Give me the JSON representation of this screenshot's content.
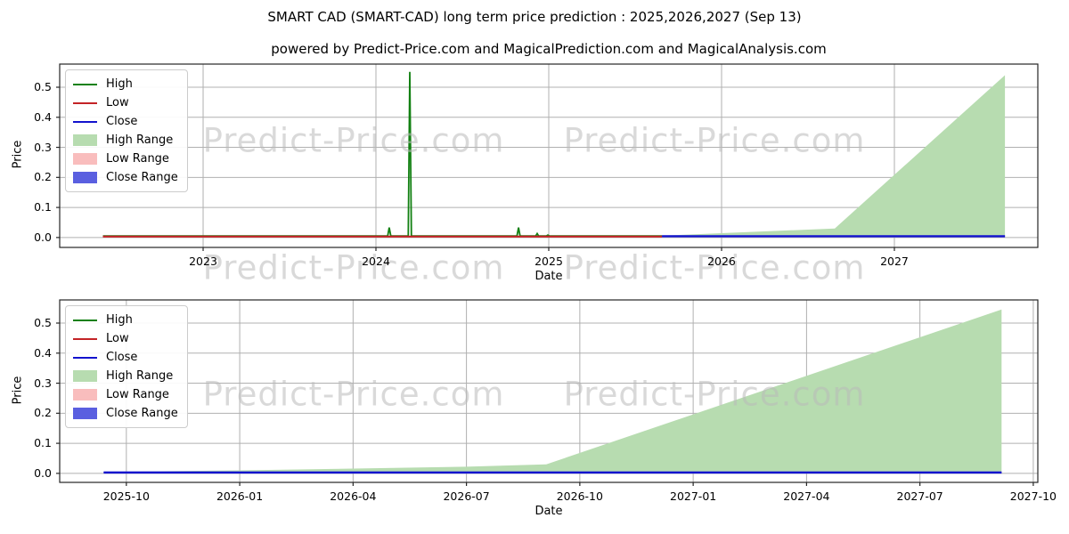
{
  "figure": {
    "title": "SMART CAD (SMART-CAD) long term price prediction : 2025,2026,2027 (Sep 13)",
    "subtitle": "powered by Predict-Price.com and MagicalPrediction.com and MagicalAnalysis.com",
    "watermark_text": "Predict-Price.com",
    "background": "#ffffff"
  },
  "colors": {
    "high": "#128012",
    "low": "#c32326",
    "close": "#1212cd",
    "high_range": "#b7dcb0",
    "low_range": "#f9bdbd",
    "close_range": "#5a5fe0",
    "grid": "#b0b0b0",
    "spine": "#262626",
    "text": "#000000"
  },
  "chart_data": [
    {
      "type": "line",
      "name": "long-term-history-and-prediction-chart",
      "xlabel": "Date",
      "ylabel": "Price",
      "grid": true,
      "legend_position": "upper left",
      "xlim": [
        2022.17,
        2027.83
      ],
      "ylim": [
        -0.033,
        0.577
      ],
      "xticks": [
        {
          "v": 2023,
          "label": "2023"
        },
        {
          "v": 2024,
          "label": "2024"
        },
        {
          "v": 2025,
          "label": "2025"
        },
        {
          "v": 2026,
          "label": "2026"
        },
        {
          "v": 2027,
          "label": "2027"
        }
      ],
      "yticks": [
        {
          "v": 0.0,
          "label": "0.0"
        },
        {
          "v": 0.1,
          "label": "0.1"
        },
        {
          "v": 0.2,
          "label": "0.2"
        },
        {
          "v": 0.3,
          "label": "0.3"
        },
        {
          "v": 0.4,
          "label": "0.4"
        },
        {
          "v": 0.5,
          "label": "0.5"
        }
      ],
      "legend": [
        {
          "label": "High",
          "type": "line",
          "color": "high"
        },
        {
          "label": "Low",
          "type": "line",
          "color": "low"
        },
        {
          "label": "Close",
          "type": "line",
          "color": "close"
        },
        {
          "label": "High Range",
          "type": "patch",
          "color": "high_range"
        },
        {
          "label": "Low Range",
          "type": "patch",
          "color": "low_range"
        },
        {
          "label": "Close Range",
          "type": "patch",
          "color": "close_range"
        }
      ],
      "bands": [
        {
          "name": "High Range",
          "color": "high_range",
          "x": [
            2025.655,
            2026.655,
            2027.64
          ],
          "upper": [
            0.006,
            0.03,
            0.54
          ],
          "lower": [
            0.004,
            0.004,
            0.004
          ]
        },
        {
          "name": "Low Range",
          "color": "low_range",
          "x": [
            2025.655,
            2027.64
          ],
          "upper": [
            0.0045,
            0.0045
          ],
          "lower": [
            0.0015,
            0.0015
          ]
        },
        {
          "name": "Close Range",
          "color": "close_range",
          "x": [
            2025.655,
            2027.64
          ],
          "upper": [
            0.0075,
            0.0075
          ],
          "lower": [
            0.001,
            0.001
          ]
        }
      ],
      "series": [
        {
          "name": "High",
          "color": "high",
          "lw": 1.8,
          "x": [
            2022.42,
            2024.068,
            2024.077,
            2024.086,
            2024.187,
            2024.196,
            2024.205,
            2024.816,
            2024.825,
            2024.834,
            2024.924,
            2024.933,
            2024.942,
            2024.986,
            2024.995,
            2025.004,
            2025.655
          ],
          "y": [
            0.005,
            0.005,
            0.033,
            0.005,
            0.005,
            0.551,
            0.005,
            0.005,
            0.033,
            0.005,
            0.005,
            0.013,
            0.005,
            0.005,
            0.008,
            0.005,
            0.005
          ]
        },
        {
          "name": "Low",
          "color": "low",
          "lw": 2.2,
          "x": [
            2022.42,
            2025.655
          ],
          "y": [
            0.003,
            0.003
          ]
        },
        {
          "name": "Close",
          "color": "close",
          "lw": 2.2,
          "x": [
            2025.655,
            2027.64
          ],
          "y": [
            0.004,
            0.004
          ]
        }
      ]
    },
    {
      "type": "line",
      "name": "prediction-detail-chart",
      "xlabel": "Date",
      "ylabel": "Price",
      "grid": true,
      "legend_position": "upper left",
      "xlim": [
        2025.603,
        2027.76
      ],
      "ylim": [
        -0.03,
        0.577
      ],
      "xticks": [
        {
          "v": 2025.75,
          "label": "2025-10"
        },
        {
          "v": 2026.0,
          "label": "2026-01"
        },
        {
          "v": 2026.25,
          "label": "2026-04"
        },
        {
          "v": 2026.5,
          "label": "2026-07"
        },
        {
          "v": 2026.75,
          "label": "2026-10"
        },
        {
          "v": 2027.0,
          "label": "2027-01"
        },
        {
          "v": 2027.25,
          "label": "2027-04"
        },
        {
          "v": 2027.5,
          "label": "2027-07"
        },
        {
          "v": 2027.75,
          "label": "2027-10"
        }
      ],
      "yticks": [
        {
          "v": 0.0,
          "label": "0.0"
        },
        {
          "v": 0.1,
          "label": "0.1"
        },
        {
          "v": 0.2,
          "label": "0.2"
        },
        {
          "v": 0.3,
          "label": "0.3"
        },
        {
          "v": 0.4,
          "label": "0.4"
        },
        {
          "v": 0.5,
          "label": "0.5"
        }
      ],
      "legend": [
        {
          "label": "High",
          "type": "line",
          "color": "high"
        },
        {
          "label": "Low",
          "type": "line",
          "color": "low"
        },
        {
          "label": "Close",
          "type": "line",
          "color": "close"
        },
        {
          "label": "High Range",
          "type": "patch",
          "color": "high_range"
        },
        {
          "label": "Low Range",
          "type": "patch",
          "color": "low_range"
        },
        {
          "label": "Close Range",
          "type": "patch",
          "color": "close_range"
        }
      ],
      "bands": [
        {
          "name": "High Range",
          "color": "high_range",
          "x": [
            2025.7,
            2026.0,
            2026.25,
            2026.5,
            2026.676,
            2027.68
          ],
          "upper": [
            0.005,
            0.01,
            0.016,
            0.022,
            0.03,
            0.545
          ],
          "lower": [
            0.003,
            0.003,
            0.003,
            0.003,
            0.003,
            0.003
          ]
        },
        {
          "name": "Low Range",
          "color": "low_range",
          "x": [
            2025.7,
            2027.68
          ],
          "upper": [
            0.004,
            0.004
          ],
          "lower": [
            0.001,
            0.001
          ]
        },
        {
          "name": "Close Range",
          "color": "close_range",
          "x": [
            2025.7,
            2027.68
          ],
          "upper": [
            0.0065,
            0.0065
          ],
          "lower": [
            0.0005,
            0.0005
          ]
        }
      ],
      "series": [
        {
          "name": "Close",
          "color": "close",
          "lw": 2.4,
          "x": [
            2025.7,
            2027.68
          ],
          "y": [
            0.003,
            0.003
          ]
        }
      ]
    }
  ]
}
